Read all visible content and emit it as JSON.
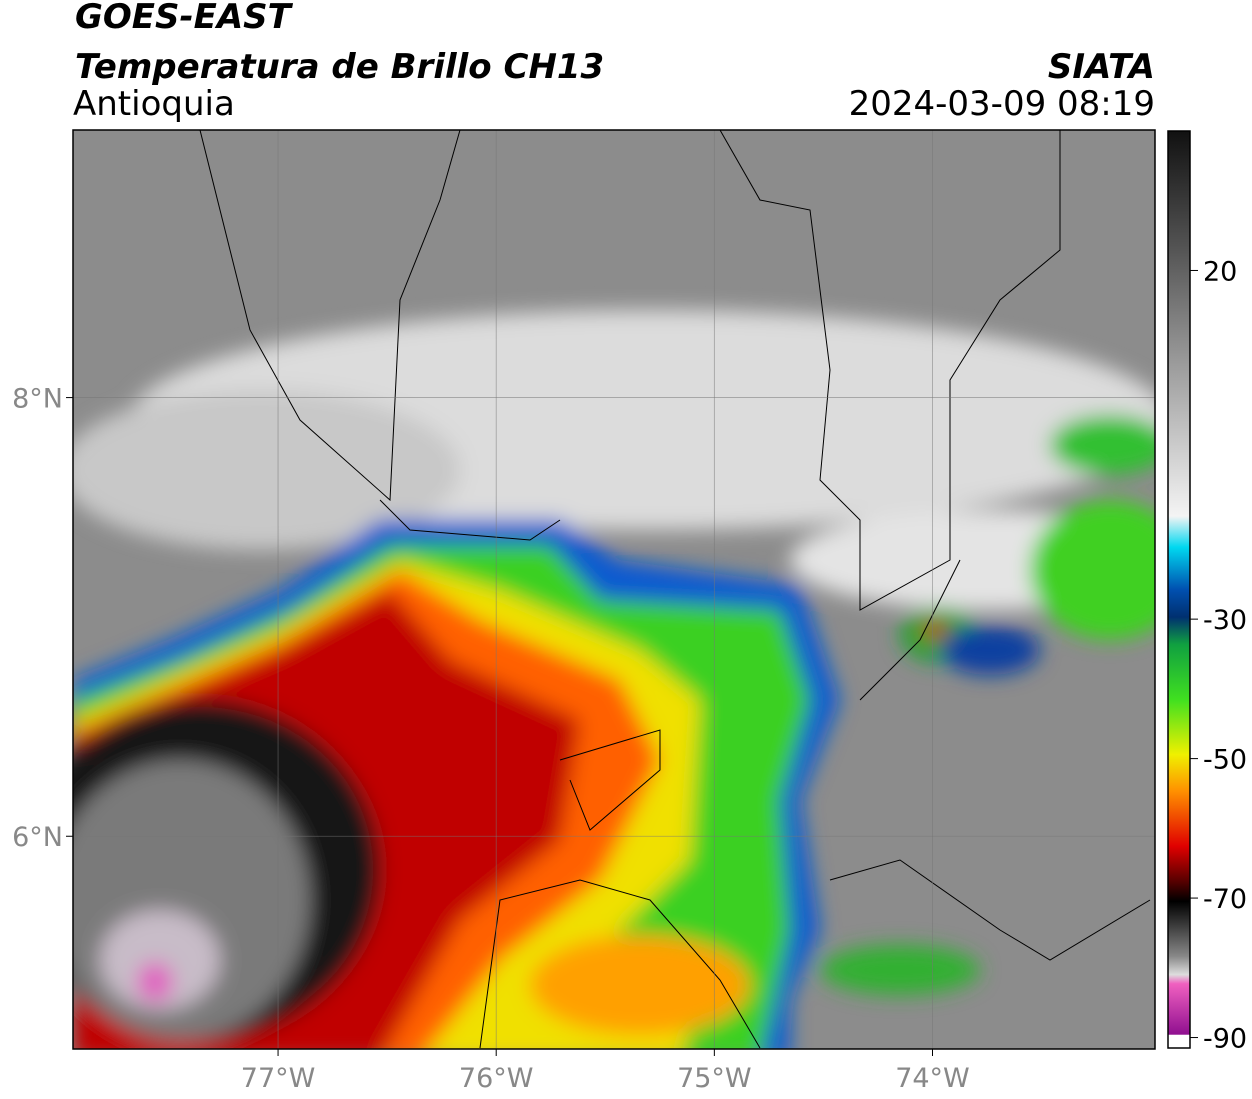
{
  "header": {
    "title": "GOES-EAST",
    "subtitle": "Temperatura de Brillo CH13",
    "region": "Antioquia",
    "source": "SIATA",
    "datetime": "2024-03-09 08:19"
  },
  "map": {
    "xlim": [
      -77.94,
      -72.98
    ],
    "ylim": [
      5.03,
      9.22
    ],
    "xticks": [
      {
        "value": -77,
        "label": "77°W"
      },
      {
        "value": -76,
        "label": "76°W"
      },
      {
        "value": -75,
        "label": "75°W"
      },
      {
        "value": -74,
        "label": "74°W"
      }
    ],
    "yticks": [
      {
        "value": 8,
        "label": "8°N"
      },
      {
        "value": 6,
        "label": "6°N"
      }
    ]
  },
  "colorbar": {
    "clim": [
      -91.5,
      40
    ],
    "ticks": [
      20,
      -30,
      -50,
      -70,
      -90
    ]
  }
}
